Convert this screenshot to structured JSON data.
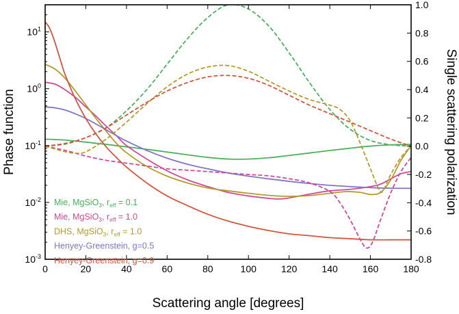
{
  "chart_data": {
    "type": "line",
    "xlabel": "Scattering angle [degrees]",
    "ylabel_left": "Phase function",
    "ylabel_right": "Single scattering polarization",
    "xlim": [
      0,
      180
    ],
    "ylim_left": [
      0.001,
      30
    ],
    "yscale_left": "log",
    "ylim_right": [
      -0.8,
      1.0
    ],
    "xticks": [
      0,
      20,
      40,
      60,
      80,
      100,
      120,
      140,
      160,
      180
    ],
    "yticks_left": [
      {
        "value": 0.001,
        "base": "10",
        "exp": "-3"
      },
      {
        "value": 0.01,
        "base": "10",
        "exp": "-2"
      },
      {
        "value": 0.1,
        "base": "10",
        "exp": "-1"
      },
      {
        "value": 1,
        "base": "10",
        "exp": "0"
      },
      {
        "value": 10,
        "base": "10",
        "exp": "1"
      }
    ],
    "yticks_right": [
      "-0.8",
      "-0.6",
      "-0.4",
      "-0.2",
      "0.0",
      "0.2",
      "0.4",
      "0.6",
      "0.8",
      "1.0"
    ],
    "legend_position": "lower-left",
    "legend": [
      {
        "main": "Mie, MgSiO",
        "sub1": "3",
        "mid": ", r",
        "sub2": "eff",
        "tail": " = 0.1",
        "color": "#4daf5c"
      },
      {
        "main": "Mie, MgSiO",
        "sub1": "3",
        "mid": ", r",
        "sub2": "eff",
        "tail": " = 1.0",
        "color": "#cf4a93"
      },
      {
        "main": "DHS, MgSiO",
        "sub1": "3",
        "mid": ", r",
        "sub2": "eff",
        "tail": " = 1.0",
        "color": "#b59a2e"
      },
      {
        "main": "Henyey-Greenstein, g=0.5",
        "sub1": "",
        "mid": "",
        "sub2": "",
        "tail": "",
        "color": "#7f74c9"
      },
      {
        "main": "Henyey-Greenstein, g=0.9",
        "sub1": "",
        "mid": "",
        "sub2": "",
        "tail": "",
        "color": "#d2553d"
      }
    ],
    "series": [
      {
        "name": "Mie, MgSiO3, reff = 0.1 (phase)",
        "axis": "left",
        "style": "solid",
        "color": "#4daf5c",
        "points": [
          [
            0,
            0.13
          ],
          [
            10,
            0.125
          ],
          [
            20,
            0.115
          ],
          [
            30,
            0.105
          ],
          [
            40,
            0.095
          ],
          [
            50,
            0.086
          ],
          [
            60,
            0.077
          ],
          [
            70,
            0.069
          ],
          [
            80,
            0.062
          ],
          [
            90,
            0.058
          ],
          [
            100,
            0.058
          ],
          [
            110,
            0.061
          ],
          [
            120,
            0.067
          ],
          [
            130,
            0.074
          ],
          [
            140,
            0.082
          ],
          [
            150,
            0.09
          ],
          [
            160,
            0.098
          ],
          [
            170,
            0.103
          ],
          [
            180,
            0.105
          ]
        ]
      },
      {
        "name": "Mie, MgSiO3, reff = 1.0 (phase)",
        "axis": "left",
        "style": "solid",
        "color": "#cf4a93",
        "points": [
          [
            0,
            1.3
          ],
          [
            5,
            1.2
          ],
          [
            10,
            0.95
          ],
          [
            15,
            0.7
          ],
          [
            20,
            0.48
          ],
          [
            25,
            0.33
          ],
          [
            30,
            0.22
          ],
          [
            35,
            0.15
          ],
          [
            40,
            0.1
          ],
          [
            50,
            0.058
          ],
          [
            60,
            0.036
          ],
          [
            70,
            0.025
          ],
          [
            80,
            0.019
          ],
          [
            90,
            0.015
          ],
          [
            100,
            0.013
          ],
          [
            110,
            0.0118
          ],
          [
            115,
            0.0115
          ],
          [
            120,
            0.012
          ],
          [
            130,
            0.014
          ],
          [
            140,
            0.016
          ],
          [
            150,
            0.017
          ],
          [
            160,
            0.019
          ],
          [
            165,
            0.021
          ],
          [
            170,
            0.026
          ],
          [
            175,
            0.032
          ],
          [
            180,
            0.035
          ]
        ]
      },
      {
        "name": "DHS, MgSiO3, reff = 1.0 (phase)",
        "axis": "left",
        "style": "solid",
        "color": "#b59a2e",
        "points": [
          [
            0,
            2.7
          ],
          [
            5,
            2.2
          ],
          [
            10,
            1.5
          ],
          [
            15,
            0.9
          ],
          [
            20,
            0.52
          ],
          [
            25,
            0.3
          ],
          [
            30,
            0.18
          ],
          [
            35,
            0.11
          ],
          [
            40,
            0.075
          ],
          [
            50,
            0.043
          ],
          [
            60,
            0.029
          ],
          [
            70,
            0.022
          ],
          [
            80,
            0.018
          ],
          [
            90,
            0.016
          ],
          [
            100,
            0.0145
          ],
          [
            110,
            0.0133
          ],
          [
            120,
            0.0128
          ],
          [
            130,
            0.0132
          ],
          [
            140,
            0.0145
          ],
          [
            148,
            0.0155
          ],
          [
            155,
            0.015
          ],
          [
            160,
            0.0138
          ],
          [
            165,
            0.015
          ],
          [
            170,
            0.025
          ],
          [
            175,
            0.055
          ],
          [
            180,
            0.1
          ]
        ]
      },
      {
        "name": "Henyey-Greenstein, g=0.5 (phase)",
        "axis": "left",
        "style": "solid",
        "color": "#7f74c9",
        "points": [
          [
            0,
            0.48
          ],
          [
            5,
            0.46
          ],
          [
            10,
            0.42
          ],
          [
            15,
            0.36
          ],
          [
            20,
            0.3
          ],
          [
            25,
            0.24
          ],
          [
            30,
            0.19
          ],
          [
            35,
            0.15
          ],
          [
            40,
            0.12
          ],
          [
            50,
            0.082
          ],
          [
            60,
            0.06
          ],
          [
            70,
            0.047
          ],
          [
            80,
            0.039
          ],
          [
            90,
            0.033
          ],
          [
            100,
            0.029
          ],
          [
            110,
            0.026
          ],
          [
            120,
            0.0235
          ],
          [
            130,
            0.0215
          ],
          [
            140,
            0.02
          ],
          [
            150,
            0.019
          ],
          [
            160,
            0.0182
          ],
          [
            170,
            0.0178
          ],
          [
            180,
            0.0177
          ]
        ]
      },
      {
        "name": "Henyey-Greenstein, g=0.9 (phase)",
        "axis": "left",
        "style": "solid",
        "color": "#d2553d",
        "points": [
          [
            0,
            15
          ],
          [
            2,
            12
          ],
          [
            4,
            8
          ],
          [
            6,
            4.8
          ],
          [
            8,
            2.8
          ],
          [
            10,
            1.7
          ],
          [
            15,
            0.65
          ],
          [
            20,
            0.3
          ],
          [
            25,
            0.16
          ],
          [
            30,
            0.095
          ],
          [
            35,
            0.062
          ],
          [
            40,
            0.042
          ],
          [
            50,
            0.022
          ],
          [
            60,
            0.013
          ],
          [
            70,
            0.0088
          ],
          [
            80,
            0.0062
          ],
          [
            90,
            0.0047
          ],
          [
            100,
            0.0038
          ],
          [
            110,
            0.0032
          ],
          [
            120,
            0.0028
          ],
          [
            130,
            0.0026
          ],
          [
            140,
            0.0024
          ],
          [
            150,
            0.0023
          ],
          [
            160,
            0.0022
          ],
          [
            170,
            0.0022
          ],
          [
            180,
            0.0022
          ]
        ]
      },
      {
        "name": "Mie, MgSiO3, reff = 0.1 (polarization)",
        "axis": "right",
        "style": "dashed",
        "color": "#4daf5c",
        "points": [
          [
            0,
            0.0
          ],
          [
            10,
            0.015
          ],
          [
            20,
            0.06
          ],
          [
            30,
            0.13
          ],
          [
            40,
            0.25
          ],
          [
            50,
            0.4
          ],
          [
            60,
            0.58
          ],
          [
            70,
            0.76
          ],
          [
            80,
            0.91
          ],
          [
            90,
            1.0
          ],
          [
            100,
            0.97
          ],
          [
            110,
            0.85
          ],
          [
            120,
            0.66
          ],
          [
            130,
            0.45
          ],
          [
            140,
            0.26
          ],
          [
            150,
            0.12
          ],
          [
            160,
            0.04
          ],
          [
            170,
            0.01
          ],
          [
            180,
            0.0
          ]
        ]
      },
      {
        "name": "Mie, MgSiO3, reff = 1.0 (polarization)",
        "axis": "right",
        "style": "dashed",
        "color": "#cf4a93",
        "points": [
          [
            0,
            0.0
          ],
          [
            10,
            -0.03
          ],
          [
            20,
            -0.07
          ],
          [
            30,
            -0.1
          ],
          [
            40,
            -0.12
          ],
          [
            50,
            -0.14
          ],
          [
            60,
            -0.16
          ],
          [
            70,
            -0.17
          ],
          [
            80,
            -0.18
          ],
          [
            90,
            -0.19
          ],
          [
            100,
            -0.2
          ],
          [
            110,
            -0.21
          ],
          [
            120,
            -0.23
          ],
          [
            130,
            -0.26
          ],
          [
            140,
            -0.32
          ],
          [
            145,
            -0.4
          ],
          [
            150,
            -0.52
          ],
          [
            155,
            -0.66
          ],
          [
            158,
            -0.72
          ],
          [
            161,
            -0.68
          ],
          [
            165,
            -0.52
          ],
          [
            170,
            -0.33
          ],
          [
            175,
            -0.18
          ],
          [
            180,
            -0.08
          ]
        ]
      },
      {
        "name": "DHS, MgSiO3, reff = 1.0 (polarization)",
        "axis": "right",
        "style": "dashed",
        "color": "#b59a2e",
        "points": [
          [
            0,
            0.0
          ],
          [
            10,
            -0.04
          ],
          [
            15,
            -0.05
          ],
          [
            20,
            -0.04
          ],
          [
            30,
            0.05
          ],
          [
            40,
            0.17
          ],
          [
            50,
            0.3
          ],
          [
            60,
            0.42
          ],
          [
            70,
            0.51
          ],
          [
            80,
            0.56
          ],
          [
            90,
            0.57
          ],
          [
            100,
            0.53
          ],
          [
            110,
            0.46
          ],
          [
            120,
            0.39
          ],
          [
            130,
            0.33
          ],
          [
            140,
            0.29
          ],
          [
            145,
            0.26
          ],
          [
            150,
            0.18
          ],
          [
            155,
            0.02
          ],
          [
            160,
            -0.16
          ],
          [
            164,
            -0.3
          ],
          [
            166,
            -0.32
          ],
          [
            170,
            -0.2
          ],
          [
            175,
            -0.08
          ],
          [
            180,
            0.0
          ]
        ]
      },
      {
        "name": "Henyey-Greenstein (polarization)",
        "axis": "right",
        "style": "dashed",
        "color": "#d2553d",
        "points": [
          [
            0,
            0.0
          ],
          [
            10,
            0.02
          ],
          [
            20,
            0.06
          ],
          [
            30,
            0.13
          ],
          [
            40,
            0.22
          ],
          [
            50,
            0.31
          ],
          [
            60,
            0.39
          ],
          [
            70,
            0.45
          ],
          [
            80,
            0.49
          ],
          [
            90,
            0.5
          ],
          [
            100,
            0.48
          ],
          [
            110,
            0.43
          ],
          [
            120,
            0.36
          ],
          [
            130,
            0.29
          ],
          [
            140,
            0.23
          ],
          [
            150,
            0.17
          ],
          [
            160,
            0.11
          ],
          [
            170,
            0.05
          ],
          [
            180,
            0.0
          ]
        ]
      }
    ]
  }
}
